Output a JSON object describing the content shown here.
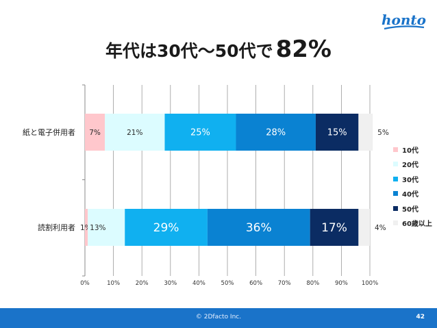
{
  "brand": {
    "logo_text": "honto"
  },
  "title": {
    "main": "年代は30代～50代で",
    "highlight": "82%"
  },
  "colors": {
    "10代": "#ffc7cc",
    "20代": "#dcfcff",
    "30代": "#10b0f0",
    "40代": "#0a82d2",
    "50代": "#0b2c63",
    "60歳以上": "#f0f0f0"
  },
  "chart_data": {
    "type": "bar",
    "orientation": "horizontal",
    "stacked": true,
    "categories": [
      "紙と電子併用者",
      "読割利用者"
    ],
    "series": [
      {
        "name": "10代",
        "values": [
          7,
          1
        ]
      },
      {
        "name": "20代",
        "values": [
          21,
          13
        ]
      },
      {
        "name": "30代",
        "values": [
          25,
          29
        ]
      },
      {
        "name": "40代",
        "values": [
          28,
          36
        ]
      },
      {
        "name": "50代",
        "values": [
          15,
          17
        ]
      },
      {
        "name": "60歳以上",
        "values": [
          5,
          4
        ]
      }
    ],
    "data_labels": [
      [
        "7%",
        "21%",
        "25%",
        "28%",
        "15%",
        "5%"
      ],
      [
        "1%",
        "13%",
        "29%",
        "36%",
        "17%",
        "4%"
      ]
    ],
    "x_ticks": [
      "0%",
      "10%",
      "20%",
      "30%",
      "40%",
      "50%",
      "60%",
      "70%",
      "80%",
      "90%",
      "100%"
    ],
    "xlim": [
      0,
      100
    ],
    "grid": true,
    "legend_position": "right"
  },
  "footer": {
    "copyright": "© 2Dfacto Inc.",
    "page_number": "42"
  }
}
